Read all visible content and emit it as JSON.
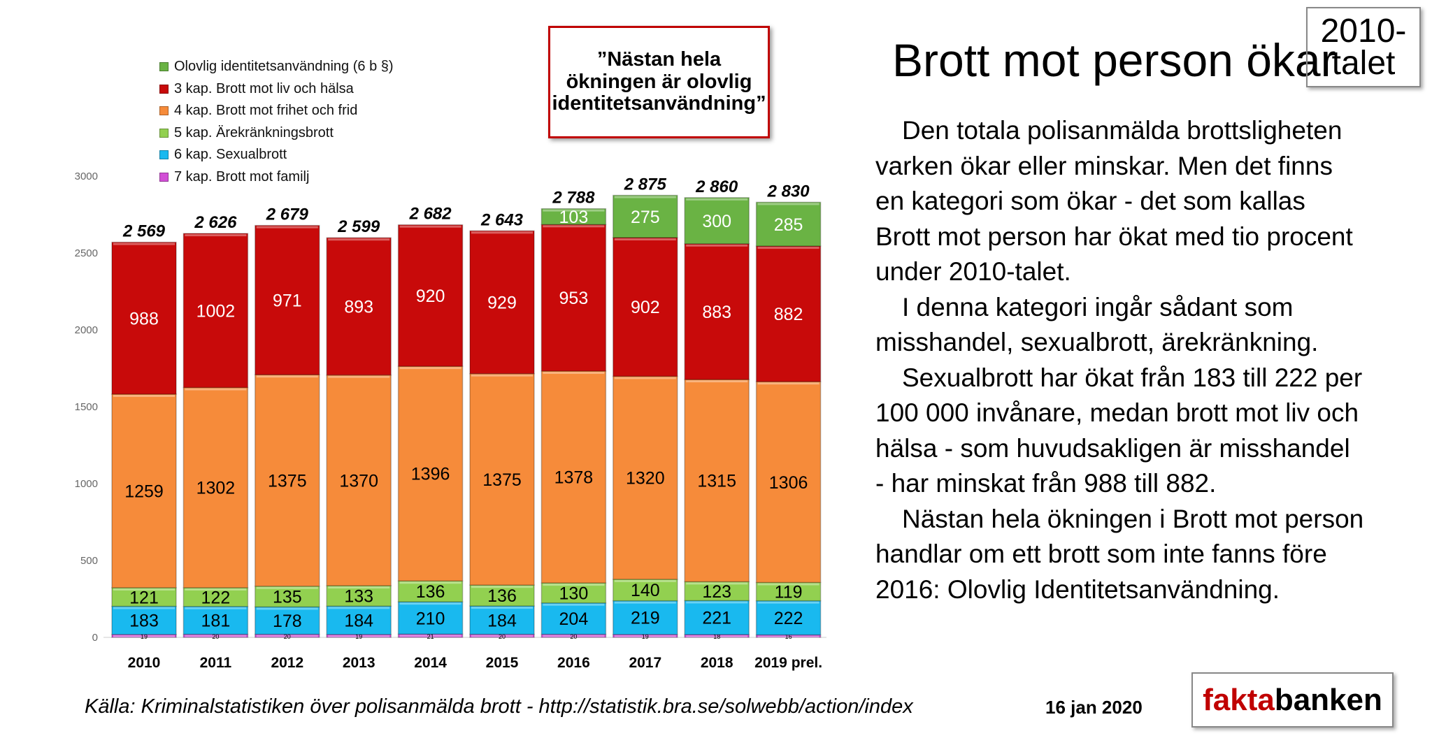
{
  "chart_data": {
    "type": "bar",
    "stacked": true,
    "categories": [
      "2010",
      "2011",
      "2012",
      "2013",
      "2014",
      "2015",
      "2016",
      "2017",
      "2018",
      "2019 prel."
    ],
    "ylim": [
      0,
      3000
    ],
    "yticks": [
      0,
      500,
      1000,
      1500,
      2000,
      2500,
      3000
    ],
    "series": [
      {
        "name": "7 kap. Brott mot familj",
        "color": "#d24fd6",
        "values": [
          19,
          20,
          20,
          19,
          21,
          20,
          20,
          19,
          18,
          16
        ]
      },
      {
        "name": "6 kap. Sexualbrott",
        "color": "#19b9ef",
        "values": [
          183,
          181,
          178,
          184,
          210,
          184,
          204,
          219,
          221,
          222
        ]
      },
      {
        "name": "5 kap. Ärekränkningsbrott",
        "color": "#92d050",
        "values": [
          121,
          122,
          135,
          133,
          136,
          136,
          130,
          140,
          123,
          119
        ]
      },
      {
        "name": "4 kap. Brott mot frihet och frid",
        "color": "#f68b3a",
        "values": [
          1259,
          1302,
          1375,
          1370,
          1396,
          1375,
          1378,
          1320,
          1315,
          1306
        ]
      },
      {
        "name": "3 kap. Brott mot liv och hälsa",
        "color": "#c80a0a",
        "values": [
          988,
          1002,
          971,
          893,
          920,
          929,
          953,
          902,
          883,
          882
        ]
      },
      {
        "name": "Olovlig identitetsanvändning (6 b §)",
        "color": "#6ab344",
        "values": [
          0,
          0,
          0,
          0,
          0,
          0,
          103,
          275,
          300,
          285
        ]
      }
    ],
    "totals": [
      "2 569",
      "2 626",
      "2 679",
      "2 599",
      "2 682",
      "2 643",
      "2 788",
      "2 875",
      "2 860",
      "2 830"
    ],
    "legend": [
      "Olovlig identitetsanvändning (6 b §)",
      "3 kap. Brott mot liv och hälsa",
      "4 kap. Brott mot frihet och frid",
      "5 kap. Ärekränkningsbrott",
      "6 kap. Sexualbrott",
      "7 kap. Brott mot familj"
    ]
  },
  "quote": "”Nästan hela ökningen är olovlig identitetsanvändning”",
  "title": "Brott mot person ökar",
  "decade_badge": "2010-talet",
  "paragraphs": [
    "Den totala polisanmälda brottsligheten varken ökar eller minskar. Men det finns en kategori som ökar - det som kallas Brott mot person har ökat med tio procent under 2010-talet.",
    "I denna kategori ingår sådant som misshandel, sexualbrott, ärekränkning.",
    "Sexualbrott har ökat från 183 till 222 per 100 000 invånare, medan brott mot liv och hälsa - som huvudsakligen är misshandel - har minskat från 988 till 882.",
    "Nästan hela ökningen i Brott mot person handlar om ett brott som inte fanns före 2016: Olovlig Identitetsanvändning."
  ],
  "source": "Källa: Kriminalstatistiken över polisanmälda brott - http://statistik.bra.se/solwebb/action/index",
  "date": "16 jan 2020",
  "logo": {
    "part1": "fakta",
    "part2": "banken"
  }
}
